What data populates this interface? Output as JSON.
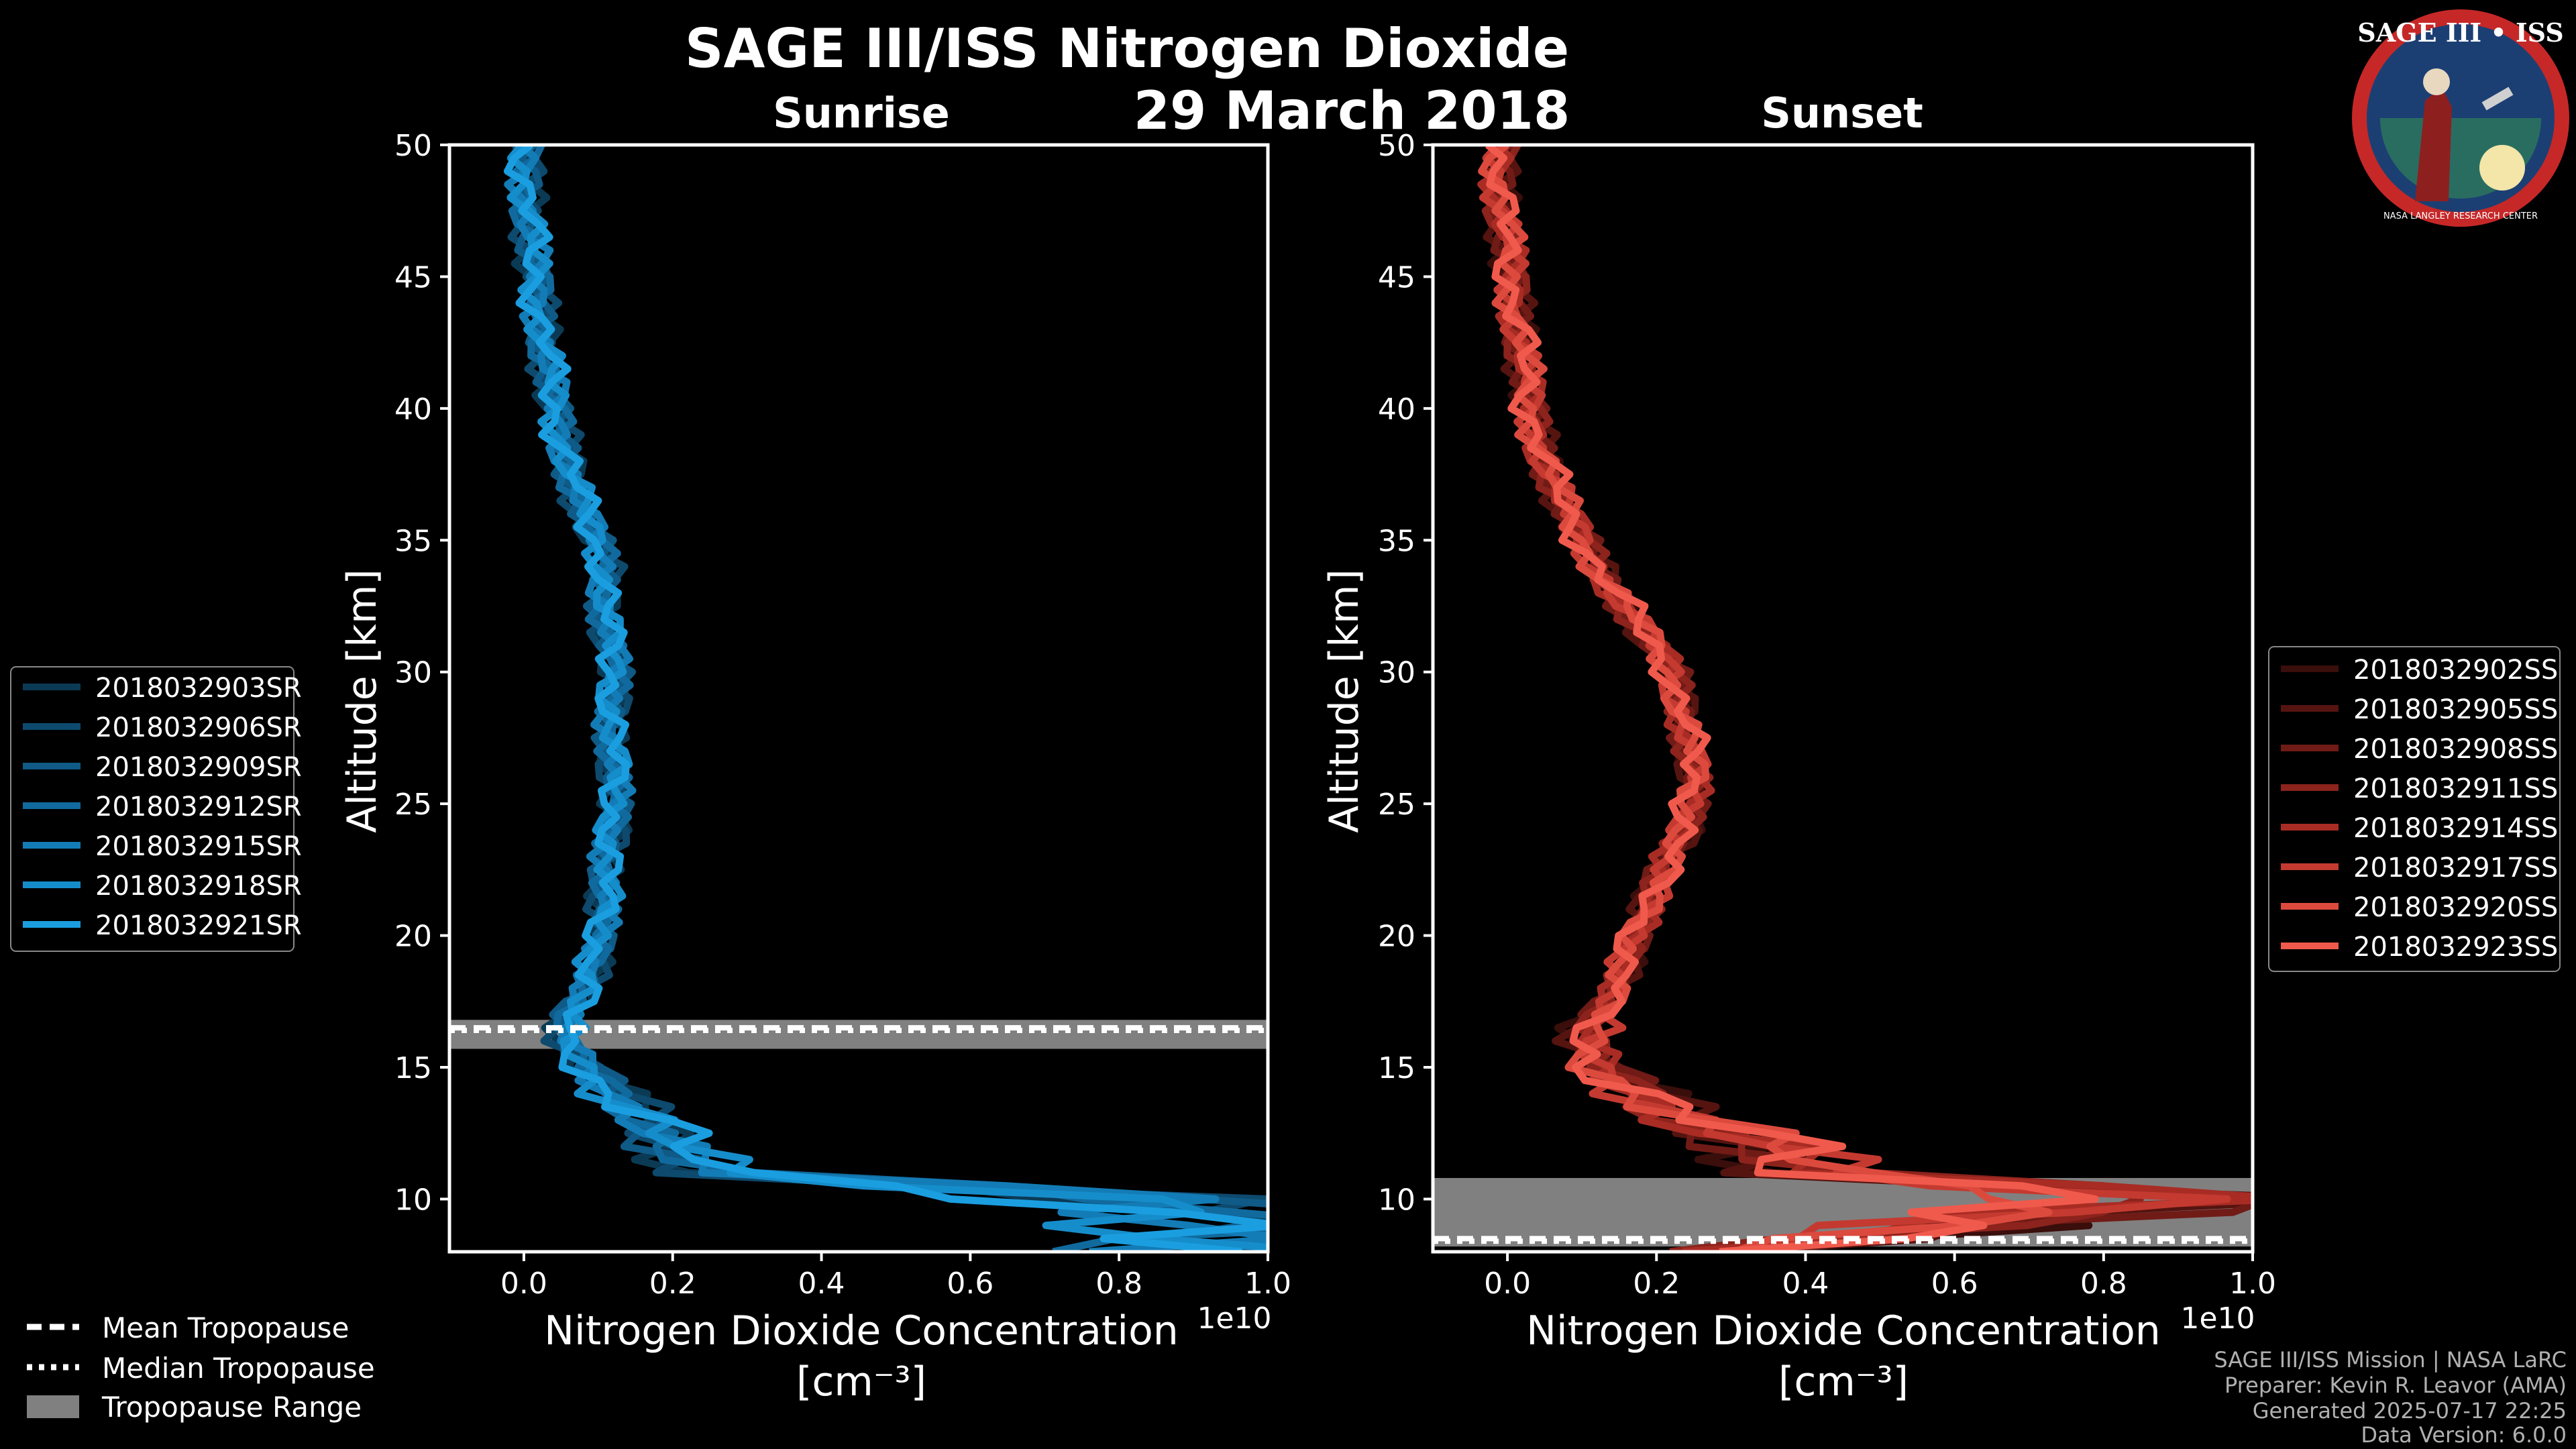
{
  "title": "SAGE III/ISS Nitrogen Dioxide",
  "date": "29 March 2018",
  "logo": {
    "text": "SAGE III • ISS",
    "ring_text": "NASA LANGLEY RESEARCH CENTER"
  },
  "colors": {
    "sunrise": "#1a9ee0",
    "sunset": "#f05a4c",
    "tropo_range": "#808080"
  },
  "chart_data": [
    {
      "type": "line",
      "title": "Sunrise",
      "xlabel": "Nitrogen Dioxide Concentration",
      "xlabel_unit": "[cm⁻³]",
      "ylabel": "Altitude [km]",
      "x_scale_label": "1e10",
      "xlim": [
        -0.1,
        1.0
      ],
      "ylim": [
        8,
        50
      ],
      "xticks": [
        "0.0",
        "0.2",
        "0.4",
        "0.6",
        "0.8",
        "1.0"
      ],
      "yticks": [
        "10",
        "15",
        "20",
        "25",
        "30",
        "35",
        "40",
        "45",
        "50"
      ],
      "tropopause": {
        "mean_km": 16.5,
        "median_km": 16.4,
        "range_km": [
          15.7,
          16.8
        ]
      },
      "profile": [
        {
          "alt": 8,
          "x": 0.95
        },
        {
          "alt": 9,
          "x": 1.0
        },
        {
          "alt": 10,
          "x": 0.8
        },
        {
          "alt": 11,
          "x": 0.25
        },
        {
          "alt": 12,
          "x": 0.2
        },
        {
          "alt": 13,
          "x": 0.18
        },
        {
          "alt": 14,
          "x": 0.12
        },
        {
          "alt": 15,
          "x": 0.08
        },
        {
          "alt": 16,
          "x": 0.05
        },
        {
          "alt": 17,
          "x": 0.06
        },
        {
          "alt": 18,
          "x": 0.09
        },
        {
          "alt": 20,
          "x": 0.1
        },
        {
          "alt": 22,
          "x": 0.11
        },
        {
          "alt": 24,
          "x": 0.12
        },
        {
          "alt": 26,
          "x": 0.12
        },
        {
          "alt": 28,
          "x": 0.12
        },
        {
          "alt": 30,
          "x": 0.12
        },
        {
          "alt": 32,
          "x": 0.11
        },
        {
          "alt": 34,
          "x": 0.11
        },
        {
          "alt": 36,
          "x": 0.08
        },
        {
          "alt": 38,
          "x": 0.06
        },
        {
          "alt": 40,
          "x": 0.04
        },
        {
          "alt": 42,
          "x": 0.03
        },
        {
          "alt": 44,
          "x": 0.02
        },
        {
          "alt": 46,
          "x": 0.01
        },
        {
          "alt": 48,
          "x": 0.005
        },
        {
          "alt": 50,
          "x": 0.0
        }
      ],
      "series": [
        {
          "name": "2018032903SR",
          "color": "#0b3a55"
        },
        {
          "name": "2018032906SR",
          "color": "#0d4a6e"
        },
        {
          "name": "2018032909SR",
          "color": "#0f5a86"
        },
        {
          "name": "2018032912SR",
          "color": "#116a9e"
        },
        {
          "name": "2018032915SR",
          "color": "#137cb6"
        },
        {
          "name": "2018032918SR",
          "color": "#168dcb"
        },
        {
          "name": "2018032921SR",
          "color": "#1a9ee0"
        }
      ],
      "legend_position": "left"
    },
    {
      "type": "line",
      "title": "Sunset",
      "xlabel": "Nitrogen Dioxide Concentration",
      "xlabel_unit": "[cm⁻³]",
      "ylabel": "Altitude [km]",
      "x_scale_label": "1e10",
      "xlim": [
        -0.1,
        1.0
      ],
      "ylim": [
        8,
        50
      ],
      "xticks": [
        "0.0",
        "0.2",
        "0.4",
        "0.6",
        "0.8",
        "1.0"
      ],
      "yticks": [
        "10",
        "15",
        "20",
        "25",
        "30",
        "35",
        "40",
        "45",
        "50"
      ],
      "tropopause": {
        "mean_km": 8.5,
        "median_km": 8.4,
        "range_km": [
          8.2,
          10.8
        ]
      },
      "profile": [
        {
          "alt": 8,
          "x": 0.3
        },
        {
          "alt": 9,
          "x": 0.6
        },
        {
          "alt": 10,
          "x": 0.9
        },
        {
          "alt": 11,
          "x": 0.4
        },
        {
          "alt": 12,
          "x": 0.35
        },
        {
          "alt": 13,
          "x": 0.25
        },
        {
          "alt": 14,
          "x": 0.18
        },
        {
          "alt": 15,
          "x": 0.12
        },
        {
          "alt": 16,
          "x": 0.1
        },
        {
          "alt": 17,
          "x": 0.12
        },
        {
          "alt": 18,
          "x": 0.15
        },
        {
          "alt": 20,
          "x": 0.17
        },
        {
          "alt": 22,
          "x": 0.2
        },
        {
          "alt": 24,
          "x": 0.24
        },
        {
          "alt": 26,
          "x": 0.25
        },
        {
          "alt": 28,
          "x": 0.24
        },
        {
          "alt": 30,
          "x": 0.22
        },
        {
          "alt": 32,
          "x": 0.17
        },
        {
          "alt": 34,
          "x": 0.12
        },
        {
          "alt": 36,
          "x": 0.08
        },
        {
          "alt": 38,
          "x": 0.05
        },
        {
          "alt": 40,
          "x": 0.03
        },
        {
          "alt": 42,
          "x": 0.02
        },
        {
          "alt": 44,
          "x": 0.01
        },
        {
          "alt": 46,
          "x": 0.0
        },
        {
          "alt": 48,
          "x": -0.01
        },
        {
          "alt": 50,
          "x": -0.01
        }
      ],
      "series": [
        {
          "name": "2018032902SS",
          "color": "#3a0e0b"
        },
        {
          "name": "2018032905SS",
          "color": "#551410"
        },
        {
          "name": "2018032908SS",
          "color": "#701b16"
        },
        {
          "name": "2018032911SS",
          "color": "#8c231c"
        },
        {
          "name": "2018032914SS",
          "color": "#a82c24"
        },
        {
          "name": "2018032917SS",
          "color": "#c43a30"
        },
        {
          "name": "2018032920SS",
          "color": "#dc4a3e"
        },
        {
          "name": "2018032923SS",
          "color": "#f05a4c"
        }
      ],
      "legend_position": "right"
    }
  ],
  "tropo_legend": {
    "mean": "Mean Tropopause",
    "median": "Median Tropopause",
    "range": "Tropopause Range"
  },
  "footer": {
    "line1": "SAGE III/ISS Mission | NASA LaRC",
    "line2": "Preparer: Kevin R. Leavor (AMA)",
    "line3": "Generated 2025-07-17 22:25",
    "line4": "Data Version: 6.0.0"
  }
}
